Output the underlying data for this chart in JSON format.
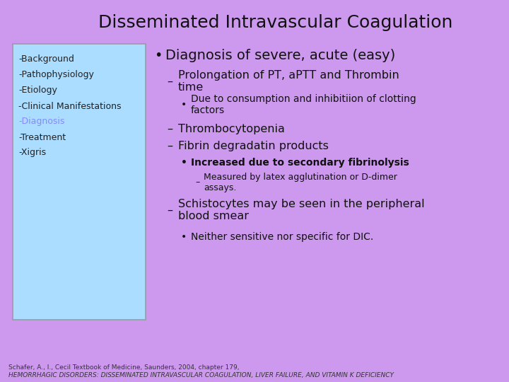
{
  "title": "Disseminated Intravascular Coagulation",
  "bg_color": "#cc99ee",
  "sidebar_bg": "#aaddff",
  "sidebar_items": [
    "-Background",
    "-Pathophysiology",
    "-Etiology",
    "-Clinical Manifestations",
    "-Diagnosis",
    "-Treatment",
    "-Xigris"
  ],
  "sidebar_highlight_index": 4,
  "sidebar_text_color": "#222222",
  "sidebar_highlight_text_color": "#8888ff",
  "content_lines": [
    {
      "level": 0,
      "text": "Diagnosis of severe, acute (easy)",
      "bullet": "•",
      "bold": false,
      "size": 14
    },
    {
      "level": 1,
      "text": "Prolongation of PT, aPTT and Thrombin\ntime",
      "bullet": "–",
      "bold": false,
      "size": 11.5
    },
    {
      "level": 2,
      "text": "Due to consumption and inhibitiion of clotting\nfactors",
      "bullet": "•",
      "bold": false,
      "size": 10
    },
    {
      "level": 1,
      "text": "Thrombocytopenia",
      "bullet": "–",
      "bold": false,
      "size": 11.5
    },
    {
      "level": 1,
      "text": "Fibrin degradatin products",
      "bullet": "–",
      "bold": false,
      "size": 11.5
    },
    {
      "level": 2,
      "text": "Increased due to secondary fibrinolysis",
      "bullet": "•",
      "bold": true,
      "size": 10
    },
    {
      "level": 3,
      "text": "Measured by latex agglutination or D-dimer\nassays.",
      "bullet": "–",
      "bold": false,
      "size": 9
    },
    {
      "level": 1,
      "text": "Schistocytes may be seen in the peripheral\nblood smear",
      "bullet": "–",
      "bold": false,
      "size": 11.5
    },
    {
      "level": 2,
      "text": "Neither sensitive nor specific for DIC.",
      "bullet": "•",
      "bold": false,
      "size": 10
    }
  ],
  "footer_line1": "Schafer, A., I., Cecil Textbook of Medicine, Saunders, 2004, chapter 179,",
  "footer_line2": "HEMORRHAGIC DISORDERS: DISSEMINATED INTRAVASCULAR COAGULATION, LIVER FAILURE, AND VITAMIN K DEFICIENCY"
}
